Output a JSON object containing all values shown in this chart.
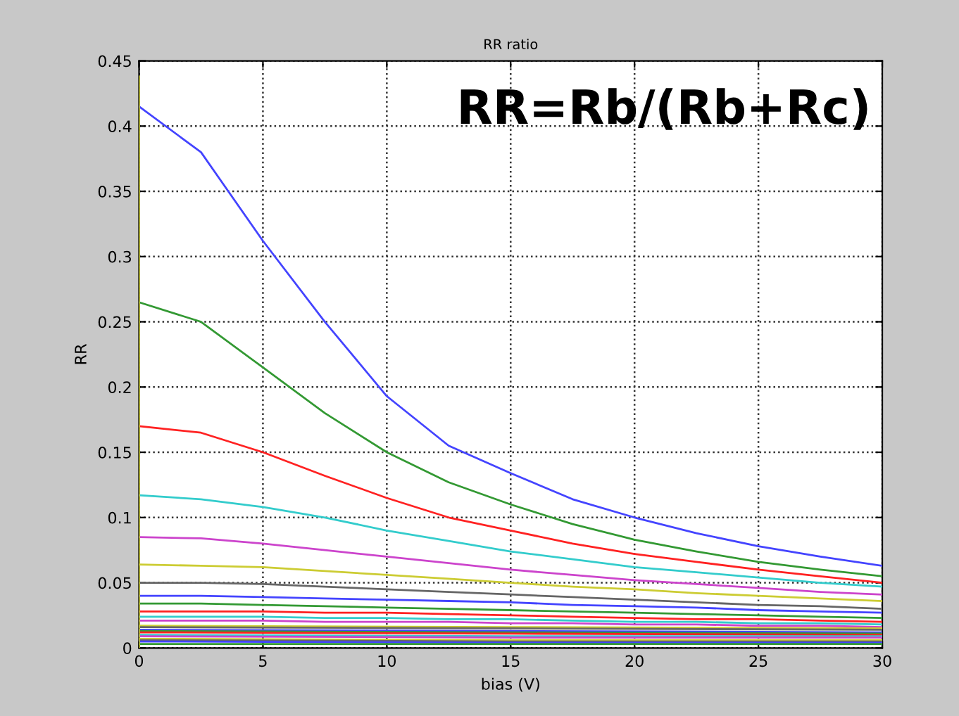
{
  "chart_data": {
    "type": "line",
    "title": "RR ratio",
    "xlabel": "bias (V)",
    "ylabel": "RR",
    "x": [
      0,
      2.5,
      5,
      7.5,
      10,
      12.5,
      15,
      17.5,
      20,
      22.5,
      25,
      27.5,
      30
    ],
    "xlim": [
      0,
      30
    ],
    "xticks": [
      0,
      5,
      10,
      15,
      20,
      25,
      30
    ],
    "ylim": [
      0,
      0.45
    ],
    "yticks": [
      0,
      0.05,
      0.1,
      0.15,
      0.2,
      0.25,
      0.3,
      0.35,
      0.4,
      0.45
    ],
    "grid": true,
    "line_style": "solid",
    "marker": "none",
    "annotations": [
      "RR=Rb/(Rb+Rc)"
    ],
    "series": [
      {
        "color": "#4444ff",
        "values": [
          0.415,
          0.38,
          0.312,
          0.25,
          0.193,
          0.155,
          0.134,
          0.114,
          0.1,
          0.088,
          0.078,
          0.07,
          0.063
        ]
      },
      {
        "color": "#339933",
        "values": [
          0.265,
          0.25,
          0.215,
          0.18,
          0.15,
          0.127,
          0.11,
          0.095,
          0.083,
          0.074,
          0.066,
          0.06,
          0.055
        ]
      },
      {
        "color": "#ff2222",
        "values": [
          0.17,
          0.165,
          0.15,
          0.132,
          0.115,
          0.1,
          0.09,
          0.08,
          0.072,
          0.066,
          0.06,
          0.055,
          0.05
        ]
      },
      {
        "color": "#33cccc",
        "values": [
          0.117,
          0.114,
          0.108,
          0.1,
          0.09,
          0.082,
          0.074,
          0.068,
          0.062,
          0.058,
          0.054,
          0.05,
          0.047
        ]
      },
      {
        "color": "#cc44cc",
        "values": [
          0.085,
          0.084,
          0.08,
          0.075,
          0.07,
          0.065,
          0.06,
          0.056,
          0.052,
          0.049,
          0.046,
          0.043,
          0.041
        ]
      },
      {
        "color": "#cccc33",
        "values": [
          0.064,
          0.063,
          0.062,
          0.059,
          0.056,
          0.053,
          0.05,
          0.047,
          0.045,
          0.042,
          0.04,
          0.038,
          0.036
        ]
      },
      {
        "color": "#666666",
        "values": [
          0.05,
          0.05,
          0.049,
          0.047,
          0.045,
          0.043,
          0.041,
          0.039,
          0.037,
          0.035,
          0.033,
          0.032,
          0.03
        ]
      },
      {
        "color": "#4444ff",
        "values": [
          0.04,
          0.04,
          0.039,
          0.038,
          0.037,
          0.036,
          0.035,
          0.033,
          0.032,
          0.031,
          0.029,
          0.028,
          0.027
        ]
      },
      {
        "color": "#339933",
        "values": [
          0.034,
          0.034,
          0.033,
          0.032,
          0.031,
          0.03,
          0.029,
          0.028,
          0.027,
          0.026,
          0.025,
          0.024,
          0.023
        ]
      },
      {
        "color": "#ff2222",
        "values": [
          0.028,
          0.028,
          0.028,
          0.027,
          0.027,
          0.026,
          0.025,
          0.024,
          0.023,
          0.022,
          0.022,
          0.021,
          0.02
        ]
      },
      {
        "color": "#33cccc",
        "values": [
          0.024,
          0.024,
          0.024,
          0.023,
          0.023,
          0.022,
          0.022,
          0.021,
          0.02,
          0.02,
          0.019,
          0.019,
          0.018
        ]
      },
      {
        "color": "#cc44cc",
        "values": [
          0.021,
          0.021,
          0.021,
          0.02,
          0.02,
          0.02,
          0.019,
          0.019,
          0.018,
          0.018,
          0.017,
          0.017,
          0.016
        ]
      },
      {
        "color": "#cccc33",
        "x": [
          0,
          15,
          30
        ],
        "values": [
          0.017,
          0.016,
          0.015
        ]
      },
      {
        "color": "#666666",
        "x": [
          0,
          15,
          30
        ],
        "values": [
          0.016,
          0.015,
          0.014
        ]
      },
      {
        "color": "#4444ff",
        "x": [
          0,
          15,
          30
        ],
        "values": [
          0.014,
          0.013,
          0.012
        ]
      },
      {
        "color": "#339933",
        "x": [
          0,
          15,
          30
        ],
        "values": [
          0.013,
          0.012,
          0.011
        ]
      },
      {
        "color": "#ff2222",
        "x": [
          0,
          15,
          30
        ],
        "values": [
          0.012,
          0.011,
          0.01
        ]
      },
      {
        "color": "#33cccc",
        "x": [
          0,
          15,
          30
        ],
        "values": [
          0.01,
          0.009,
          0.009
        ]
      },
      {
        "color": "#cc44cc",
        "x": [
          0,
          15,
          30
        ],
        "values": [
          0.009,
          0.008,
          0.008
        ]
      },
      {
        "color": "#cccc33",
        "x": [
          0,
          15,
          30
        ],
        "values": [
          0.007,
          0.006,
          0.006
        ]
      },
      {
        "color": "#666666",
        "x": [
          0,
          15,
          30
        ],
        "values": [
          0.006,
          0.005,
          0.005
        ]
      },
      {
        "color": "#4444ff",
        "x": [
          0,
          15,
          30
        ],
        "values": [
          0.005,
          0.004,
          0.004
        ]
      },
      {
        "color": "#339933",
        "x": [
          0,
          15,
          30
        ],
        "values": [
          0.003,
          0.003,
          0.003
        ]
      },
      {
        "color": "#cccc33",
        "x": [
          0,
          0
        ],
        "values": [
          0,
          0.438
        ]
      }
    ]
  }
}
